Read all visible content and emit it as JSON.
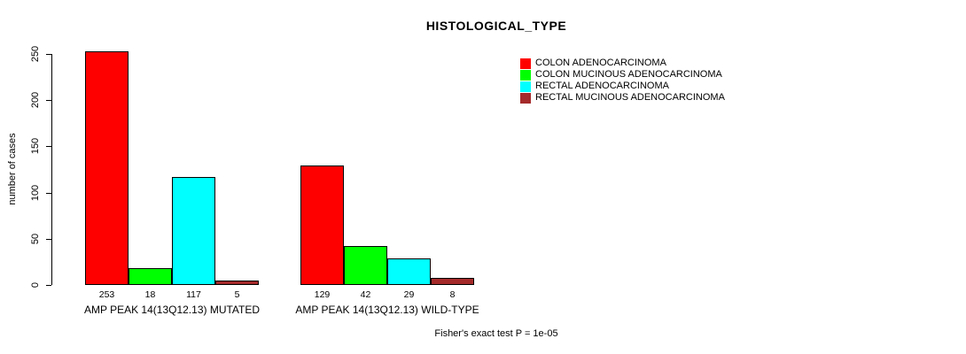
{
  "chart_data": {
    "type": "bar",
    "title": "HISTOLOGICAL_TYPE",
    "xlabel": "",
    "ylabel": "number of cases",
    "ylim": [
      0,
      250
    ],
    "yticks": [
      0,
      50,
      100,
      150,
      200,
      250
    ],
    "grid": false,
    "legend_position": "top-right",
    "categories": [
      "AMP PEAK 14(13Q12.13) MUTATED",
      "AMP PEAK 14(13Q12.13) WILD-TYPE"
    ],
    "series": [
      {
        "name": "COLON ADENOCARCINOMA",
        "color": "#FF0000",
        "values": [
          253,
          129
        ]
      },
      {
        "name": "COLON MUCINOUS ADENOCARCINOMA",
        "color": "#00FF00",
        "values": [
          18,
          42
        ]
      },
      {
        "name": "RECTAL ADENOCARCINOMA",
        "color": "#00FFFF",
        "values": [
          117,
          29
        ]
      },
      {
        "name": "RECTAL MUCINOUS ADENOCARCINOMA",
        "color": "#A52A2A",
        "values": [
          5,
          8
        ]
      }
    ],
    "bar_value_labels": [
      [
        253,
        18,
        117,
        5
      ],
      [
        129,
        42,
        29,
        8
      ]
    ],
    "annotation": "Fisher's exact test P = 1e-05"
  }
}
